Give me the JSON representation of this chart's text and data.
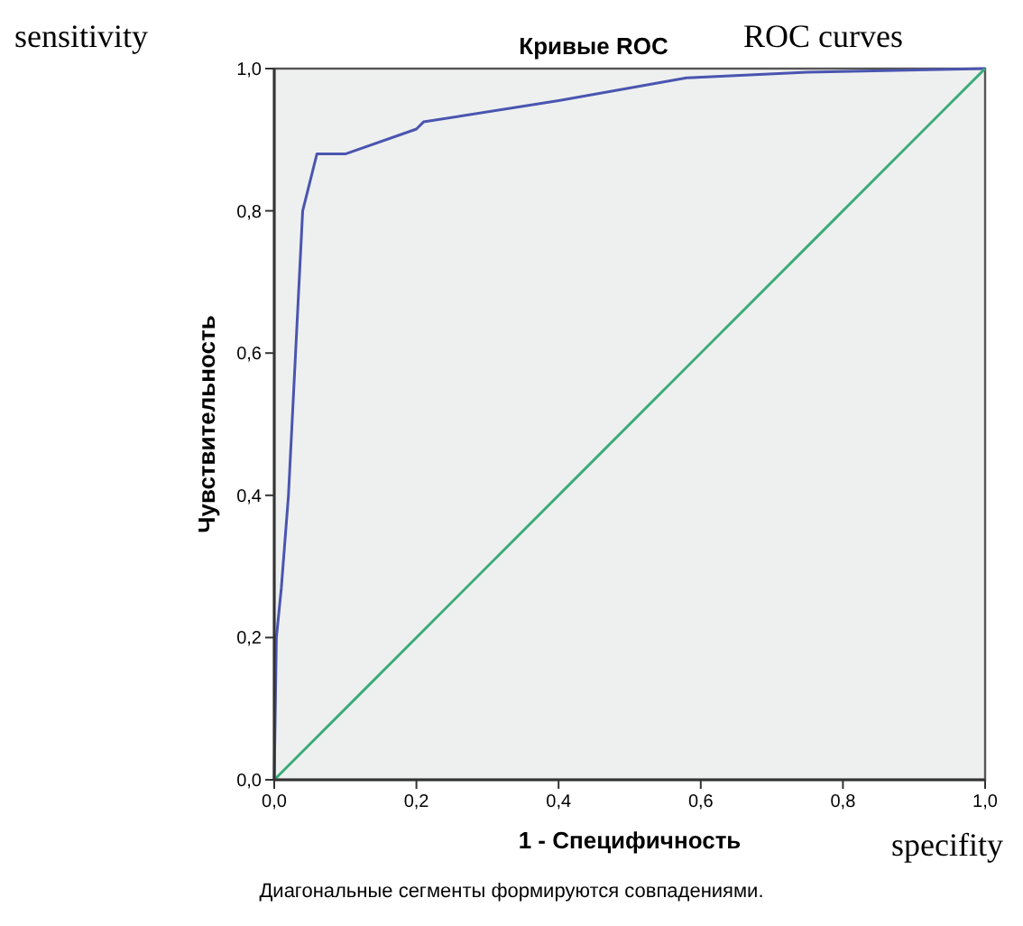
{
  "chart_data": {
    "type": "line",
    "title": "Кривые ROC",
    "xlabel": "1 - Специфичность",
    "ylabel": "Чувствительность",
    "annotations": [
      "Диагональные сегменты формируются совпадениями.",
      "sensitivity",
      "ROC curves",
      "specifity"
    ],
    "series": [
      {
        "color": "#4a55b0",
        "x": [
          0,
          0.003,
          0.01,
          0.02,
          0.03,
          0.04,
          0.06,
          0.1,
          0.2,
          0.21,
          0.4,
          0.58,
          0.75,
          1
        ],
        "values": [
          0,
          0.2,
          0.27,
          0.4,
          0.6,
          0.8,
          0.88,
          0.88,
          0.915,
          0.925,
          0.955,
          0.987,
          0.995,
          1
        ]
      },
      {
        "color": "#3aaa7a",
        "x": [
          0,
          1
        ],
        "values": [
          0,
          1
        ]
      }
    ],
    "xlim": [
      0,
      1
    ],
    "ylim": [
      0,
      1
    ],
    "xticks": [
      {
        "value": 0,
        "label": "0,0"
      },
      {
        "value": 0.2,
        "label": "0,2"
      },
      {
        "value": 0.4,
        "label": "0,4"
      },
      {
        "value": 0.6,
        "label": "0,6"
      },
      {
        "value": 0.8,
        "label": "0,8"
      },
      {
        "value": 1,
        "label": "1,0"
      }
    ],
    "yticks": [
      {
        "value": 0,
        "label": "0,0"
      },
      {
        "value": 0.2,
        "label": "0,2"
      },
      {
        "value": 0.4,
        "label": "0,4"
      },
      {
        "value": 0.6,
        "label": "0,6"
      },
      {
        "value": 0.8,
        "label": "0,8"
      },
      {
        "value": 1,
        "label": "1,0"
      }
    ],
    "grid": false,
    "marker": "none",
    "line_style": "solid"
  }
}
